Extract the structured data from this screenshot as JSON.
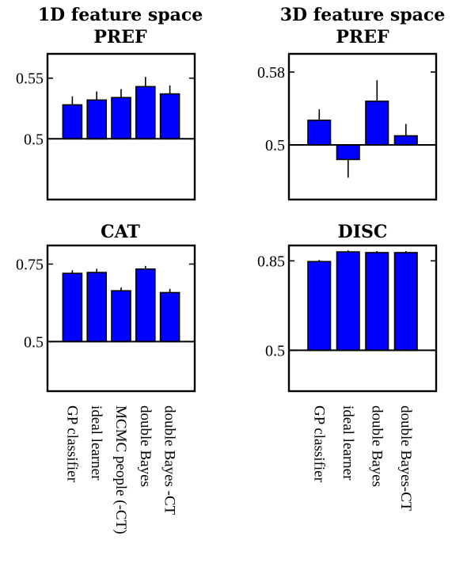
{
  "chart_data": [
    {
      "type": "bar",
      "title": "1D feature space",
      "subtitle": "PREF",
      "ylim": [
        0.45,
        0.57
      ],
      "baseline": 0.5,
      "yticks": [
        "0.55",
        "0.5"
      ],
      "ytick_values": [
        0.55,
        0.5
      ],
      "categories": [
        "GP classifier",
        "ideal learner",
        "MCMC people (-CT)",
        "double Bayes",
        "double Bayes -CT"
      ],
      "values": [
        0.528,
        0.532,
        0.534,
        0.543,
        0.537
      ],
      "errors": [
        0.007,
        0.007,
        0.007,
        0.008,
        0.007
      ],
      "show_category_labels": true,
      "color": "#0000ff"
    },
    {
      "type": "bar",
      "title": "3D feature space",
      "subtitle": "PREF",
      "ylim": [
        0.44,
        0.6
      ],
      "baseline": 0.5,
      "yticks": [
        "0.58",
        "0.5"
      ],
      "ytick_values": [
        0.58,
        0.5
      ],
      "categories": [
        "GP classifier",
        "ideal learner",
        "double Bayes",
        "double Bayes-CT"
      ],
      "values": [
        0.527,
        0.484,
        0.548,
        0.51
      ],
      "errors": [
        0.012,
        0.02,
        0.023,
        0.013
      ],
      "show_category_labels": false,
      "color": "#0000ff"
    },
    {
      "type": "bar",
      "title": "",
      "subtitle": "CAT",
      "ylim": [
        0.34,
        0.81
      ],
      "baseline": 0.5,
      "yticks": [
        "0.75",
        "0.5"
      ],
      "ytick_values": [
        0.75,
        0.5
      ],
      "categories": [
        "GP classifier",
        "ideal learner",
        "MCMC people (-CT)",
        "double Bayes",
        "double Bayes -CT"
      ],
      "values": [
        0.72,
        0.723,
        0.664,
        0.734,
        0.658
      ],
      "errors": [
        0.01,
        0.012,
        0.01,
        0.01,
        0.012
      ],
      "show_category_labels": false,
      "color": "#0000ff"
    },
    {
      "type": "bar",
      "title": "",
      "subtitle": "DISC",
      "ylim": [
        0.34,
        0.91
      ],
      "baseline": 0.5,
      "yticks": [
        "0.85",
        "0.5"
      ],
      "ytick_values": [
        0.85,
        0.5
      ],
      "categories": [
        "GP classifier",
        "ideal learner",
        "double Bayes",
        "double Bayes-CT"
      ],
      "values": [
        0.847,
        0.885,
        0.882,
        0.882
      ],
      "errors": [
        0.006,
        0.006,
        0.006,
        0.006
      ],
      "show_category_labels": true,
      "color": "#0000ff"
    }
  ]
}
